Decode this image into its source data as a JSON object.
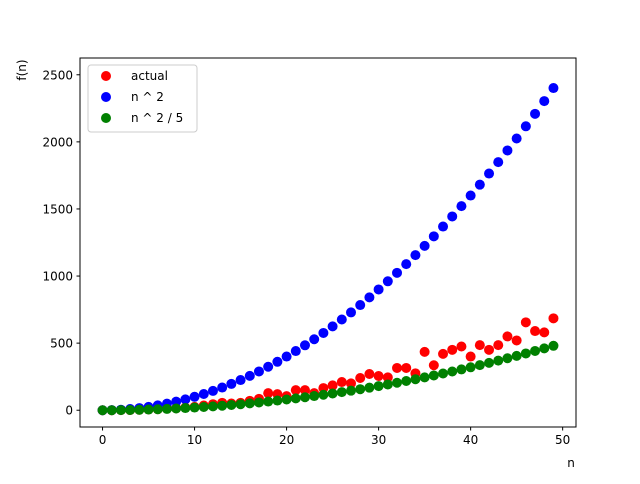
{
  "chart_data": {
    "type": "scatter",
    "xlabel": "n",
    "ylabel": "f(n)",
    "xlim": [
      -2.45,
      51.45
    ],
    "ylim": [
      -125,
      2625
    ],
    "xticks": [
      0,
      10,
      20,
      30,
      40,
      50
    ],
    "yticks": [
      0,
      500,
      1000,
      1500,
      2000,
      2500
    ],
    "grid": false,
    "legend_position": "top-left",
    "x": [
      0,
      1,
      2,
      3,
      4,
      5,
      6,
      7,
      8,
      9,
      10,
      11,
      12,
      13,
      14,
      15,
      16,
      17,
      18,
      19,
      20,
      21,
      22,
      23,
      24,
      25,
      26,
      27,
      28,
      29,
      30,
      31,
      32,
      33,
      34,
      35,
      36,
      37,
      38,
      39,
      40,
      41,
      42,
      43,
      44,
      45,
      46,
      47,
      48,
      49
    ],
    "series": [
      {
        "name": "actual",
        "color": "#ff0000",
        "values": [
          0,
          0,
          1,
          2,
          4,
          6,
          8,
          12,
          15,
          20,
          25,
          35,
          45,
          55,
          50,
          55,
          70,
          85,
          127,
          120,
          105,
          150,
          150,
          127,
          165,
          185,
          210,
          200,
          240,
          270,
          255,
          245,
          315,
          315,
          275,
          435,
          335,
          420,
          450,
          475,
          400,
          485,
          450,
          485,
          550,
          520,
          655,
          590,
          580,
          685
        ]
      },
      {
        "name": "n ^ 2",
        "color": "#0000ff",
        "formula": "n^2"
      },
      {
        "name": "n ^ 2 / 5",
        "color": "#008000",
        "formula": "n^2/5"
      }
    ]
  }
}
